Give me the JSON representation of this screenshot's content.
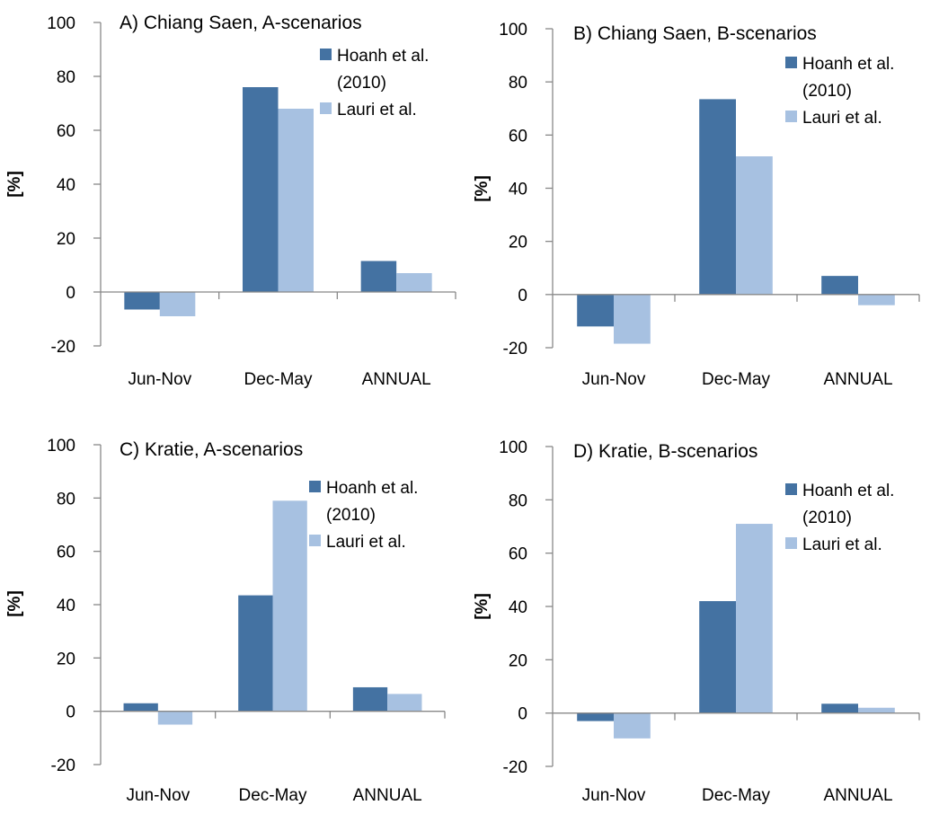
{
  "chart_data": [
    {
      "type": "bar",
      "title": "A) Chiang Saen, A-scenarios",
      "ylabel": "[%]",
      "ylim": [
        -20,
        100
      ],
      "yticks": [
        -20,
        0,
        20,
        40,
        60,
        80,
        100
      ],
      "categories": [
        "Jun-Nov",
        "Dec-May",
        "ANNUAL"
      ],
      "series": [
        {
          "name": "Hoanh et al. (2010)",
          "legend_lines": [
            "Hoanh et al.",
            "(2010)"
          ],
          "values": [
            -6.5,
            76,
            11.5
          ]
        },
        {
          "name": "Lauri et al.",
          "legend_lines": [
            "Lauri et al."
          ],
          "values": [
            -9,
            68,
            7
          ]
        }
      ],
      "legend": "top-right",
      "grid": false
    },
    {
      "type": "bar",
      "title": "B) Chiang Saen, B-scenarios",
      "ylabel": "[%]",
      "ylim": [
        -20,
        100
      ],
      "yticks": [
        -20,
        0,
        20,
        40,
        60,
        80,
        100
      ],
      "categories": [
        "Jun-Nov",
        "Dec-May",
        "ANNUAL"
      ],
      "series": [
        {
          "name": "Hoanh et al. (2010)",
          "legend_lines": [
            "Hoanh et al.",
            "(2010)"
          ],
          "values": [
            -12,
            73.5,
            7
          ]
        },
        {
          "name": "Lauri et al.",
          "legend_lines": [
            "Lauri et al."
          ],
          "values": [
            -18.5,
            52,
            -4
          ]
        }
      ],
      "legend": "top-right",
      "grid": false
    },
    {
      "type": "bar",
      "title": "C) Kratie, A-scenarios",
      "ylabel": "[%]",
      "ylim": [
        -20,
        100
      ],
      "yticks": [
        -20,
        0,
        20,
        40,
        60,
        80,
        100
      ],
      "categories": [
        "Jun-Nov",
        "Dec-May",
        "ANNUAL"
      ],
      "series": [
        {
          "name": "Hoanh et al. (2010)",
          "legend_lines": [
            "Hoanh et al.",
            "(2010)"
          ],
          "values": [
            3,
            43.5,
            9
          ]
        },
        {
          "name": "Lauri et al.",
          "legend_lines": [
            "Lauri et al."
          ],
          "values": [
            -5,
            79,
            6.5
          ]
        }
      ],
      "legend": "top-right",
      "grid": false
    },
    {
      "type": "bar",
      "title": "D) Kratie, B-scenarios",
      "ylabel": "[%]",
      "ylim": [
        -20,
        100
      ],
      "yticks": [
        -20,
        0,
        20,
        40,
        60,
        80,
        100
      ],
      "categories": [
        "Jun-Nov",
        "Dec-May",
        "ANNUAL"
      ],
      "series": [
        {
          "name": "Hoanh et al. (2010)",
          "legend_lines": [
            "Hoanh et al.",
            "(2010)"
          ],
          "values": [
            -3,
            42,
            3.5
          ]
        },
        {
          "name": "Lauri et al.",
          "legend_lines": [
            "Lauri et al."
          ],
          "values": [
            -9.5,
            71,
            2
          ]
        }
      ],
      "legend": "top-right",
      "grid": false
    }
  ],
  "colors": {
    "series": [
      "#4472A2",
      "#A7C1E1"
    ],
    "axis": "#888888",
    "text": "#000000"
  }
}
